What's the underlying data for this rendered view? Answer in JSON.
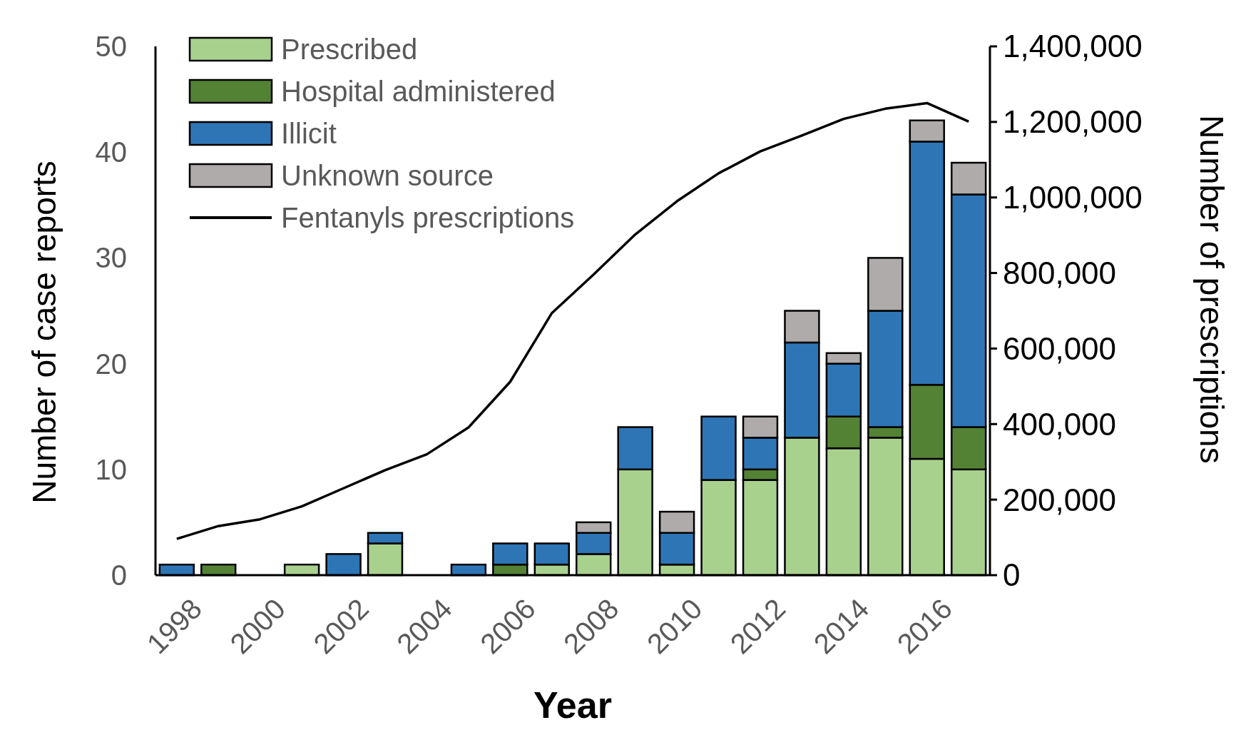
{
  "chart_data": {
    "type": "bar",
    "stacked": true,
    "xlabel": "Year",
    "ylabel": "Number of case reports",
    "y2label": "Number of prescriptions",
    "categories": [
      "1998",
      null,
      "2000",
      null,
      "2002",
      null,
      "2004",
      null,
      "2006",
      null,
      "2008",
      null,
      "2010",
      null,
      "2012",
      null,
      "2014",
      null,
      "2016",
      null
    ],
    "series": [
      {
        "name": "Prescribed",
        "color": "#a9d18e",
        "values": [
          0,
          0,
          0,
          1,
          0,
          3,
          0,
          0,
          0,
          1,
          2,
          10,
          1,
          9,
          9,
          13,
          12,
          13,
          11,
          10
        ]
      },
      {
        "name": "Hospital administered",
        "color": "#548235",
        "values": [
          0,
          1,
          0,
          0,
          0,
          0,
          0,
          0,
          1,
          0,
          0,
          0,
          0,
          0,
          1,
          0,
          3,
          1,
          7,
          4
        ]
      },
      {
        "name": "Illicit",
        "color": "#2e75b6",
        "values": [
          1,
          0,
          0,
          0,
          2,
          1,
          0,
          1,
          2,
          2,
          2,
          4,
          3,
          6,
          3,
          9,
          5,
          11,
          23,
          22
        ]
      },
      {
        "name": "Unknown source",
        "color": "#afabab",
        "values": [
          0,
          0,
          0,
          0,
          0,
          0,
          0,
          0,
          0,
          0,
          1,
          0,
          2,
          0,
          2,
          3,
          1,
          5,
          2,
          3
        ]
      },
      {
        "name": "Fentanyls prescriptions",
        "type": "line",
        "axis": "y2",
        "color": "#000000",
        "values": [
          96000,
          130000,
          148000,
          182000,
          230000,
          278000,
          320000,
          391000,
          512000,
          694000,
          796000,
          902000,
          990000,
          1064000,
          1122000,
          1164000,
          1208000,
          1235000,
          1250000,
          1201000
        ]
      }
    ],
    "ylim": [
      0,
      50
    ],
    "yticks": [
      0,
      10,
      20,
      30,
      40,
      50
    ],
    "y2lim": [
      0,
      1400000
    ],
    "y2ticks": [
      0,
      {
        "value": 200000,
        "label": "200,000"
      },
      {
        "value": 400000,
        "label": "400,000"
      },
      {
        "value": 600000,
        "label": "600,000"
      },
      {
        "value": 800000,
        "label": "800,000"
      },
      {
        "value": 1000000,
        "label": "1,000,000"
      },
      {
        "value": 1200000,
        "label": "1,200,000"
      },
      {
        "value": 1400000,
        "label": "1,400,000"
      }
    ],
    "legend": "top left",
    "grid": false
  }
}
